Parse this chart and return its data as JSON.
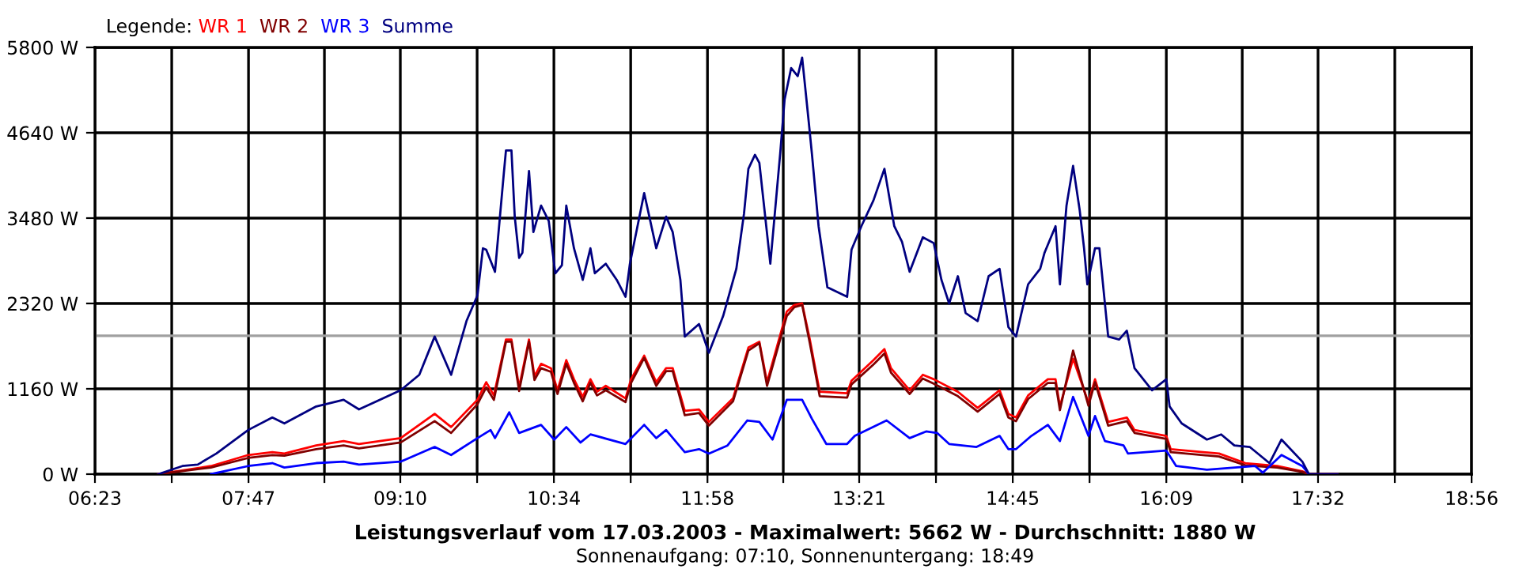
{
  "chart_data": {
    "type": "line",
    "title": "Leistungsverlauf vom 17.03.2003 - Maximalwert: 5662 W - Durchschnitt: 1880 W",
    "subtitle": "Sonnenaufgang: 07:10, Sonnenuntergang: 18:49",
    "legend_title": "Legende:",
    "legend": "top left",
    "grid": true,
    "marker": "none",
    "line_style": "solid",
    "xlim": [
      6.383,
      18.933
    ],
    "xticks": [
      {
        "value": 6.383,
        "label": "06:23"
      },
      {
        "value": 7.083,
        "label": null
      },
      {
        "value": 7.783,
        "label": "07:47"
      },
      {
        "value": 8.475,
        "label": null
      },
      {
        "value": 9.167,
        "label": "09:10"
      },
      {
        "value": 9.867,
        "label": null
      },
      {
        "value": 10.567,
        "label": "10:34"
      },
      {
        "value": 11.267,
        "label": null
      },
      {
        "value": 11.967,
        "label": "11:58"
      },
      {
        "value": 12.658,
        "label": null
      },
      {
        "value": 13.35,
        "label": "13:21"
      },
      {
        "value": 14.05,
        "label": null
      },
      {
        "value": 14.75,
        "label": "14:45"
      },
      {
        "value": 15.45,
        "label": null
      },
      {
        "value": 16.15,
        "label": "16:09"
      },
      {
        "value": 16.842,
        "label": null
      },
      {
        "value": 17.533,
        "label": "17:32"
      },
      {
        "value": 18.233,
        "label": null
      },
      {
        "value": 18.933,
        "label": "18:56"
      }
    ],
    "ylim": [
      0,
      5800
    ],
    "yticks": [
      {
        "value": 0,
        "label": "0 W"
      },
      {
        "value": 1160,
        "label": "1160 W"
      },
      {
        "value": 2320,
        "label": "2320 W"
      },
      {
        "value": 3480,
        "label": "3480 W"
      },
      {
        "value": 4640,
        "label": "4640 W"
      },
      {
        "value": 5800,
        "label": "5800 W"
      }
    ],
    "ref_lines": [
      {
        "axis": "y",
        "value": 1880,
        "color": "#a0a0a0"
      }
    ],
    "series": [
      {
        "name": "WR 1",
        "color": "#ff0000",
        "x": [
          6.96,
          7.44,
          7.78,
          8.0,
          8.11,
          8.4,
          8.65,
          8.79,
          9.17,
          9.48,
          9.63,
          9.87,
          9.95,
          10.02,
          10.13,
          10.18,
          10.25,
          10.34,
          10.39,
          10.45,
          10.54,
          10.6,
          10.68,
          10.75,
          10.83,
          10.9,
          10.96,
          11.04,
          11.22,
          11.27,
          11.39,
          11.5,
          11.59,
          11.65,
          11.76,
          11.89,
          11.98,
          12.2,
          12.34,
          12.44,
          12.51,
          12.69,
          12.76,
          12.83,
          12.9,
          12.99,
          13.24,
          13.28,
          13.48,
          13.58,
          13.64,
          13.81,
          13.93,
          14.03,
          14.25,
          14.43,
          14.63,
          14.71,
          14.78,
          14.89,
          15.07,
          15.14,
          15.18,
          15.3,
          15.44,
          15.5,
          15.62,
          15.79,
          15.86,
          16.15,
          16.19,
          16.63,
          16.87,
          17.16,
          17.39,
          17.45,
          17.71
        ],
        "values": [
          0,
          110,
          260,
          300,
          280,
          390,
          450,
          410,
          490,
          820,
          640,
          1010,
          1250,
          1070,
          1830,
          1830,
          1180,
          1830,
          1330,
          1500,
          1440,
          1140,
          1550,
          1290,
          1050,
          1290,
          1120,
          1200,
          1030,
          1290,
          1610,
          1250,
          1440,
          1440,
          860,
          880,
          710,
          1030,
          1720,
          1800,
          1250,
          2210,
          2300,
          2320,
          1830,
          1120,
          1100,
          1270,
          1550,
          1700,
          1440,
          1140,
          1350,
          1290,
          1120,
          900,
          1140,
          820,
          770,
          1070,
          1290,
          1290,
          920,
          1570,
          970,
          1290,
          710,
          770,
          600,
          520,
          340,
          280,
          150,
          110,
          40,
          0,
          0
        ]
      },
      {
        "name": "WR 2",
        "color": "#800000",
        "x": [
          6.96,
          7.44,
          7.78,
          8.0,
          8.11,
          8.4,
          8.65,
          8.79,
          9.17,
          9.48,
          9.63,
          9.87,
          9.95,
          10.02,
          10.13,
          10.18,
          10.25,
          10.34,
          10.39,
          10.45,
          10.54,
          10.6,
          10.68,
          10.75,
          10.83,
          10.9,
          10.96,
          11.04,
          11.22,
          11.27,
          11.39,
          11.5,
          11.59,
          11.65,
          11.76,
          11.89,
          11.98,
          12.2,
          12.34,
          12.44,
          12.51,
          12.69,
          12.76,
          12.83,
          12.9,
          12.99,
          13.24,
          13.28,
          13.48,
          13.58,
          13.64,
          13.81,
          13.93,
          14.03,
          14.25,
          14.43,
          14.63,
          14.71,
          14.78,
          14.89,
          15.07,
          15.14,
          15.18,
          15.3,
          15.44,
          15.5,
          15.62,
          15.79,
          15.86,
          16.15,
          16.19,
          16.63,
          16.87,
          17.16,
          17.39,
          17.45,
          17.71
        ],
        "values": [
          0,
          90,
          220,
          260,
          250,
          340,
          390,
          350,
          430,
          720,
          560,
          950,
          1180,
          1010,
          1800,
          1800,
          1130,
          1800,
          1280,
          1440,
          1390,
          1090,
          1500,
          1240,
          990,
          1240,
          1070,
          1140,
          980,
          1240,
          1580,
          1200,
          1400,
          1400,
          800,
          830,
          660,
          990,
          1680,
          1780,
          1200,
          2150,
          2270,
          2300,
          1780,
          1060,
          1040,
          1220,
          1490,
          1640,
          1380,
          1090,
          1300,
          1230,
          1060,
          850,
          1090,
          770,
          720,
          1020,
          1240,
          1240,
          870,
          1680,
          930,
          1250,
          660,
          720,
          560,
          480,
          300,
          240,
          120,
          90,
          30,
          0,
          0
        ]
      },
      {
        "name": "WR 3",
        "color": "#0000ff",
        "x": [
          7.44,
          7.78,
          8.0,
          8.11,
          8.4,
          8.65,
          8.79,
          9.17,
          9.48,
          9.63,
          9.87,
          9.99,
          10.03,
          10.16,
          10.25,
          10.45,
          10.57,
          10.68,
          10.81,
          10.9,
          11.22,
          11.39,
          11.5,
          11.59,
          11.76,
          11.89,
          11.98,
          12.15,
          12.33,
          12.44,
          12.56,
          12.69,
          12.83,
          12.92,
          13.05,
          13.24,
          13.31,
          13.6,
          13.81,
          13.96,
          14.06,
          14.17,
          14.42,
          14.63,
          14.71,
          14.78,
          14.92,
          15.07,
          15.18,
          15.3,
          15.44,
          15.5,
          15.59,
          15.76,
          15.8,
          16.15,
          16.24,
          16.52,
          16.96,
          17.03,
          17.2,
          17.39,
          17.45
        ],
        "values": [
          0,
          110,
          150,
          90,
          150,
          170,
          130,
          170,
          370,
          260,
          490,
          600,
          490,
          840,
          560,
          670,
          470,
          640,
          430,
          540,
          410,
          670,
          490,
          600,
          300,
          340,
          280,
          390,
          730,
          710,
          470,
          1010,
          1010,
          750,
          410,
          410,
          520,
          730,
          490,
          580,
          560,
          410,
          370,
          520,
          340,
          340,
          520,
          670,
          450,
          1050,
          520,
          790,
          450,
          390,
          280,
          320,
          110,
          60,
          110,
          20,
          260,
          110,
          0
        ]
      },
      {
        "name": "Summe",
        "color": "#000080",
        "x": [
          6.96,
          7.18,
          7.32,
          7.49,
          7.78,
          8.0,
          8.11,
          8.4,
          8.65,
          8.79,
          9.17,
          9.34,
          9.48,
          9.63,
          9.77,
          9.87,
          9.92,
          9.95,
          10.03,
          10.11,
          10.13,
          10.18,
          10.21,
          10.25,
          10.28,
          10.34,
          10.38,
          10.45,
          10.52,
          10.58,
          10.64,
          10.68,
          10.75,
          10.83,
          10.9,
          10.94,
          11.04,
          11.14,
          11.22,
          11.26,
          11.39,
          11.5,
          11.59,
          11.65,
          11.72,
          11.76,
          11.89,
          11.98,
          12.11,
          12.23,
          12.3,
          12.34,
          12.4,
          12.44,
          12.54,
          12.63,
          12.67,
          12.73,
          12.79,
          12.83,
          12.89,
          12.92,
          12.98,
          13.06,
          13.24,
          13.28,
          13.37,
          13.48,
          13.58,
          13.67,
          13.74,
          13.81,
          13.93,
          14.03,
          14.1,
          14.17,
          14.25,
          14.32,
          14.43,
          14.53,
          14.63,
          14.71,
          14.78,
          14.89,
          15.0,
          15.04,
          15.14,
          15.18,
          15.24,
          15.3,
          15.36,
          15.4,
          15.43,
          15.5,
          15.54,
          15.62,
          15.72,
          15.79,
          15.86,
          16.02,
          16.15,
          16.18,
          16.29,
          16.52,
          16.65,
          16.77,
          16.91,
          17.09,
          17.2,
          17.39,
          17.45,
          17.71
        ],
        "values": [
          0,
          110,
          130,
          280,
          600,
          770,
          690,
          920,
          1010,
          880,
          1140,
          1350,
          1870,
          1350,
          2080,
          2430,
          3070,
          3050,
          2750,
          4080,
          4400,
          4400,
          3500,
          2940,
          3010,
          4120,
          3290,
          3650,
          3440,
          2730,
          2840,
          3650,
          3070,
          2640,
          3070,
          2730,
          2860,
          2640,
          2410,
          2860,
          3820,
          3070,
          3500,
          3290,
          2640,
          1870,
          2040,
          1650,
          2150,
          2790,
          3540,
          4150,
          4340,
          4230,
          2860,
          4360,
          5090,
          5520,
          5410,
          5662,
          4790,
          4340,
          3370,
          2540,
          2410,
          3050,
          3370,
          3720,
          4150,
          3370,
          3160,
          2750,
          3220,
          3140,
          2640,
          2320,
          2690,
          2190,
          2080,
          2690,
          2790,
          2000,
          1870,
          2580,
          2790,
          3010,
          3370,
          2580,
          3650,
          4190,
          3590,
          3070,
          2580,
          3070,
          3070,
          1870,
          1830,
          1950,
          1440,
          1140,
          1290,
          920,
          690,
          470,
          540,
          390,
          370,
          150,
          470,
          170,
          0,
          0
        ]
      }
    ]
  }
}
